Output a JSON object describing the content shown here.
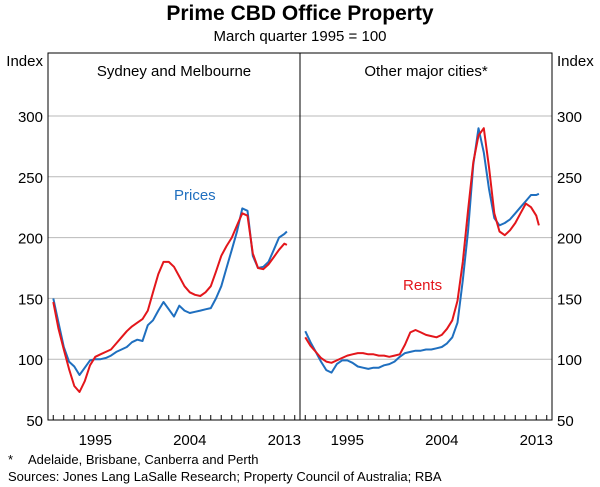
{
  "title": "Prime CBD Office Property",
  "subtitle": "March quarter 1995 = 100",
  "footnote_marker": "*",
  "footnote": "Adelaide, Brisbane, Canberra and Perth",
  "sources": "Sources: Jones Lang LaSalle Research; Property Council of Australia; RBA",
  "colors": {
    "prices": "#1f6fbf",
    "rents": "#e3161b",
    "grid": "#b9b9b9",
    "frame": "#000000"
  },
  "chart_data": [
    {
      "type": "line",
      "panel_title": "Sydney and Melbourne",
      "ylabel": "Index",
      "ylim": [
        50,
        300
      ],
      "yticks": [
        50,
        100,
        150,
        200,
        250,
        300
      ],
      "xlim": [
        1990.5,
        2014.5
      ],
      "xticks": [
        1995,
        2004,
        2013
      ],
      "series": [
        {
          "name": "Prices",
          "color": "prices",
          "label": "Prices",
          "x": [
            1991.0,
            1991.5,
            1992.0,
            1992.5,
            1993.0,
            1993.5,
            1994.0,
            1994.5,
            1995.0,
            1995.5,
            1996.0,
            1996.5,
            1997.0,
            1997.5,
            1998.0,
            1998.5,
            1999.0,
            1999.5,
            2000.0,
            2000.5,
            2001.0,
            2001.5,
            2002.0,
            2002.5,
            2003.0,
            2003.5,
            2004.0,
            2004.5,
            2005.0,
            2005.5,
            2006.0,
            2006.5,
            2007.0,
            2007.5,
            2008.0,
            2008.5,
            2009.0,
            2009.5,
            2010.0,
            2010.5,
            2011.0,
            2011.5,
            2012.0,
            2012.5,
            2013.0,
            2013.25
          ],
          "values": [
            150,
            130,
            110,
            98,
            94,
            87,
            93,
            99,
            100,
            100,
            101,
            103,
            106,
            108,
            110,
            114,
            116,
            115,
            128,
            132,
            140,
            147,
            141,
            135,
            144,
            140,
            138,
            139,
            140,
            141,
            142,
            150,
            160,
            175,
            190,
            205,
            224,
            222,
            185,
            175,
            176,
            180,
            190,
            200,
            203,
            205
          ]
        },
        {
          "name": "Rents",
          "color": "rents",
          "label": "",
          "x": [
            1991.0,
            1991.5,
            1992.0,
            1992.5,
            1993.0,
            1993.5,
            1994.0,
            1994.5,
            1995.0,
            1995.5,
            1996.0,
            1996.5,
            1997.0,
            1997.5,
            1998.0,
            1998.5,
            1999.0,
            1999.5,
            2000.0,
            2000.5,
            2001.0,
            2001.5,
            2002.0,
            2002.5,
            2003.0,
            2003.5,
            2004.0,
            2004.5,
            2005.0,
            2005.5,
            2006.0,
            2006.5,
            2007.0,
            2007.5,
            2008.0,
            2008.5,
            2009.0,
            2009.5,
            2010.0,
            2010.5,
            2011.0,
            2011.5,
            2012.0,
            2012.5,
            2013.0,
            2013.25
          ],
          "values": [
            147,
            125,
            108,
            92,
            78,
            73,
            82,
            95,
            102,
            104,
            106,
            108,
            113,
            118,
            123,
            127,
            130,
            133,
            140,
            155,
            170,
            180,
            180,
            176,
            168,
            160,
            155,
            153,
            152,
            155,
            160,
            172,
            185,
            193,
            200,
            210,
            220,
            218,
            187,
            175,
            174,
            178,
            184,
            190,
            195,
            194
          ]
        }
      ]
    },
    {
      "type": "line",
      "panel_title": "Other major cities*",
      "ylabel": "Index",
      "ylim": [
        50,
        300
      ],
      "yticks": [
        50,
        100,
        150,
        200,
        250,
        300
      ],
      "xlim": [
        1990.5,
        2014.5
      ],
      "xticks": [
        1995,
        2004,
        2013
      ],
      "series": [
        {
          "name": "Prices",
          "color": "prices",
          "label": "",
          "x": [
            1991.0,
            1991.5,
            1992.0,
            1992.5,
            1993.0,
            1993.5,
            1994.0,
            1994.5,
            1995.0,
            1995.5,
            1996.0,
            1996.5,
            1997.0,
            1997.5,
            1998.0,
            1998.5,
            1999.0,
            1999.5,
            2000.0,
            2000.5,
            2001.0,
            2001.5,
            2002.0,
            2002.5,
            2003.0,
            2003.5,
            2004.0,
            2004.5,
            2005.0,
            2005.5,
            2006.0,
            2006.5,
            2007.0,
            2007.5,
            2008.0,
            2008.5,
            2009.0,
            2009.5,
            2010.0,
            2010.5,
            2011.0,
            2011.5,
            2012.0,
            2012.5,
            2013.0,
            2013.25
          ],
          "values": [
            123,
            114,
            106,
            98,
            91,
            89,
            96,
            99,
            99,
            97,
            94,
            93,
            92,
            93,
            93,
            95,
            96,
            98,
            102,
            105,
            106,
            107,
            107,
            108,
            108,
            109,
            110,
            113,
            118,
            130,
            165,
            205,
            260,
            290,
            270,
            240,
            216,
            210,
            212,
            215,
            220,
            225,
            230,
            235,
            235,
            236
          ]
        },
        {
          "name": "Rents",
          "color": "rents",
          "label": "Rents",
          "x": [
            1991.0,
            1991.5,
            1992.0,
            1992.5,
            1993.0,
            1993.5,
            1994.0,
            1994.5,
            1995.0,
            1995.5,
            1996.0,
            1996.5,
            1997.0,
            1997.5,
            1998.0,
            1998.5,
            1999.0,
            1999.5,
            2000.0,
            2000.5,
            2001.0,
            2001.5,
            2002.0,
            2002.5,
            2003.0,
            2003.5,
            2004.0,
            2004.5,
            2005.0,
            2005.5,
            2006.0,
            2006.5,
            2007.0,
            2007.5,
            2008.0,
            2008.5,
            2009.0,
            2009.5,
            2010.0,
            2010.5,
            2011.0,
            2011.5,
            2012.0,
            2012.5,
            2013.0,
            2013.25
          ],
          "values": [
            118,
            111,
            106,
            101,
            98,
            97,
            99,
            101,
            103,
            104,
            105,
            105,
            104,
            104,
            103,
            103,
            102,
            103,
            104,
            112,
            122,
            124,
            122,
            120,
            119,
            118,
            120,
            125,
            132,
            148,
            180,
            222,
            262,
            284,
            290,
            258,
            220,
            205,
            202,
            206,
            212,
            220,
            228,
            225,
            218,
            210
          ]
        }
      ]
    }
  ]
}
